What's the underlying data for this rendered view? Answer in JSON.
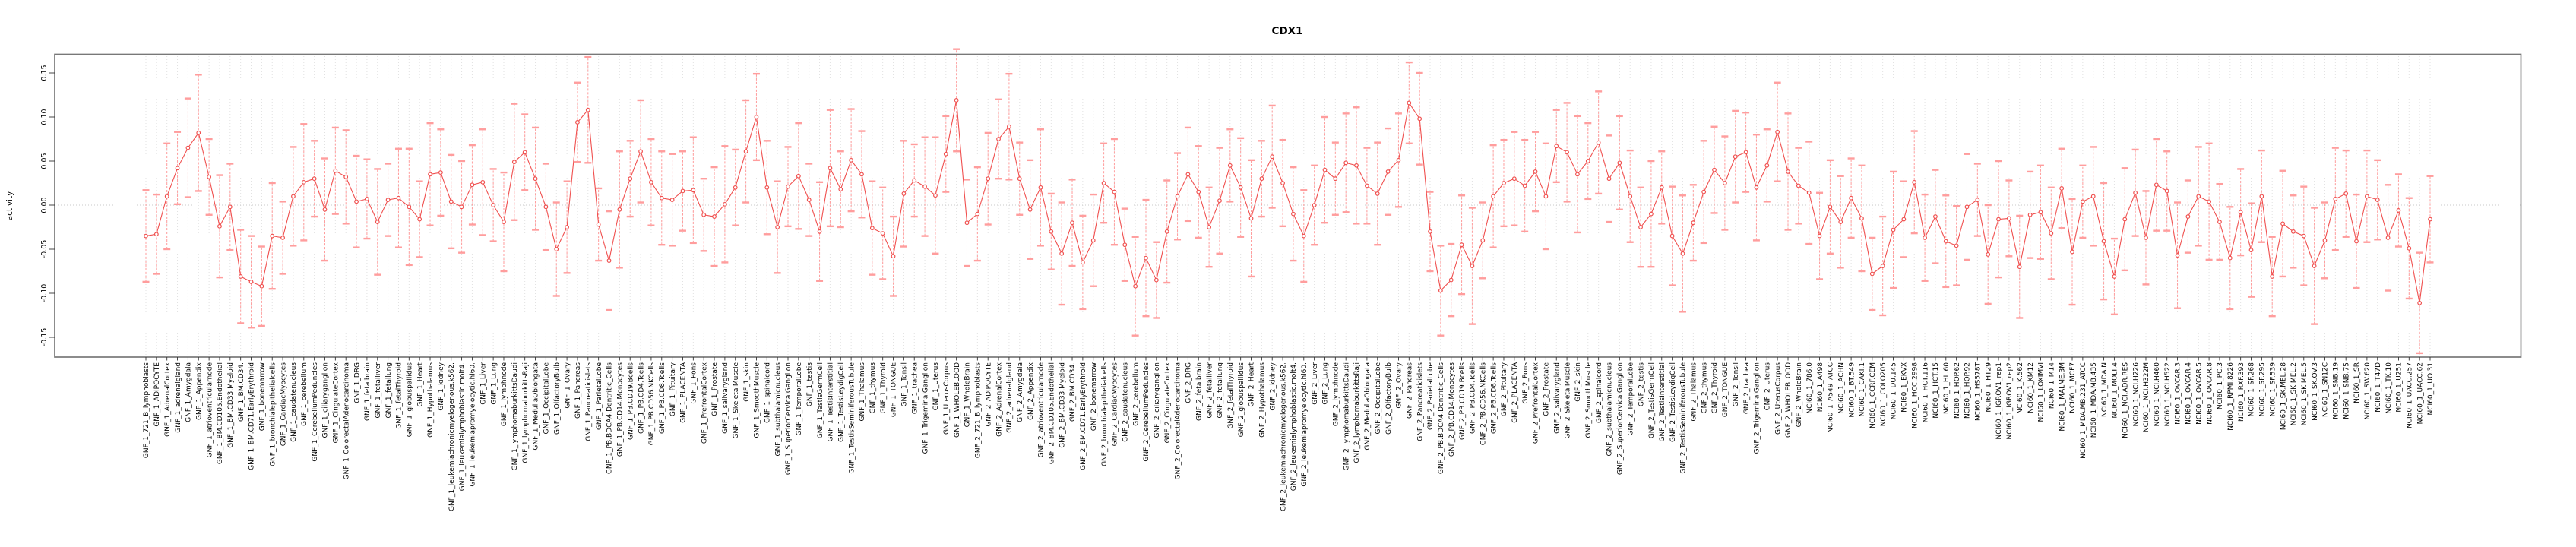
{
  "chart_data": {
    "type": "line",
    "title": "CDX1",
    "ylabel": "activity",
    "xlabel": "",
    "yticks": [
      "0.15",
      "0.10",
      "0.05",
      "0.00",
      "-0.05",
      "-0.10",
      "-0.15"
    ],
    "ylim": [
      -0.172,
      0.171
    ],
    "grid": "vertical dotted per category",
    "zero_line": true,
    "point_style": "open-circle",
    "error_bars": true,
    "legend": "none",
    "colors": {
      "series": "#f0504f",
      "error_bar": "#ff9d9d",
      "grid": "#e1e1e1",
      "zero_line": "#c8c8c8",
      "box": "#787878",
      "tick": "#333333"
    },
    "categories": [
      "GNF_1_721_B_lymphoblasts",
      "GNF_1_ADIPOCYTE",
      "GNF_1_AdrenalCortex",
      "GNF_1_adrenalgland",
      "GNF_1_Amygdala",
      "GNF_1_Appendix",
      "GNF_1_atrioventricularnode",
      "GNF_1_BM.CD105.Endothelial",
      "GNF_1_BM.CD33.Myeloid",
      "GNF_1_BM.CD34.",
      "GNF_1_BM.CD71.EarlyErythroid",
      "GNF_1_bonemarrow",
      "GNF_1_bronchialepithelialcells",
      "GNF_1_CardiacMyocytes",
      "GNF_1_caudatenucleus",
      "GNF_1_cerebellum",
      "GNF_1_CerebellumPeduncles",
      "GNF_1_ciliaryganglion",
      "GNF_1_CingulateCortex",
      "GNF_1_ColorectalAdenocarcinoma",
      "GNF_1_DRG",
      "GNF_1_fetalbrain",
      "GNF_1_fetalliver",
      "GNF_1_fetallung",
      "GNF_1_fetalThyroid",
      "GNF_1_globuspallidus",
      "GNF_1_Heart",
      "GNF_1_Hypothalamus",
      "GNF_1_kidney",
      "GNF_1_leukemiachronicmyelogenous.k562.",
      "GNF_1_leukemialymphoblastic.molt4.",
      "GNF_1_leukemiapromyelocytic.hl60.",
      "GNF_1_Liver",
      "GNF_1_Lung",
      "GNF_1_lymphnode",
      "GNF_1_lymphomaburkittsDaudi",
      "GNF_1_lymphomaburkittsRaji",
      "GNF_1_MedullaOblongata",
      "GNF_1_OccipitalLobe",
      "GNF_1_OlfactoryBulb",
      "GNF_1_Ovary",
      "GNF_1_Pancreas",
      "GNF_1_Pancreaticislets",
      "GNF_1_ParietalLobe",
      "GNF_1_PB.BDCA4.Dentritic_Cells",
      "GNF_1_PB.CD14.Monocytes",
      "GNF_1_PB.CD19.Bcells",
      "GNF_1_PB.CD4.Tcells",
      "GNF_1_PB.CD56.NKCells",
      "GNF_1_PB.CD8.Tcells",
      "GNF_1_Pituitary",
      "GNF_1_PLACENTA",
      "GNF_1_Pons",
      "GNF_1_PrefrontalCortex",
      "GNF_1_Prostate",
      "GNF_1_salivarygland",
      "GNF_1_SkeletalMuscle",
      "GNF_1_skin",
      "GNF_1_SmoothMuscle",
      "GNF_1_spinalcord",
      "GNF_1_subthalamicnucleus",
      "GNF_1_SuperiorCervicalGanglion",
      "GNF_1_TemporalLobe",
      "GNF_1_testis",
      "GNF_1_TestisGermCell",
      "GNF_1_TestisInterstitial",
      "GNF_1_TestisLeydigCell",
      "GNF_1_TestisSeminiferousTubule",
      "GNF_1_Thalamus",
      "GNF_1_thymus",
      "GNF_1_Thyroid",
      "GNF_1_TONGUE",
      "GNF_1_Tonsil",
      "GNF_1_trachea",
      "GNF_1_TrigeminalGanglion",
      "GNF_1_Uterus",
      "GNF_1_UterusCorpus",
      "GNF_1_WHOLEBLOOD",
      "GNF_1_WholeBrain",
      "GNF_2_721_B_lymphoblasts",
      "GNF_2_ADIPOCYTE",
      "GNF_2_AdrenalCortex",
      "GNF_2_adrenalgland",
      "GNF_2_Amygdala",
      "GNF_2_Appendix",
      "GNF_2_atrioventricularnode",
      "GNF_2_BM.CD105.Endothelial",
      "GNF_2_BM.CD33.Myeloid",
      "GNF_2_BM.CD34.",
      "GNF_2_BM.CD71.EarlyErythroid",
      "GNF_2_bonemarrow",
      "GNF_2_bronchialepithelialcells",
      "GNF_2_CardiacMyocytes",
      "GNF_2_caudatenucleus",
      "GNF_2_cerebellum",
      "GNF_2_CerebellumPeduncles",
      "GNF_2_ciliaryganglion",
      "GNF_2_CingulateCortex",
      "GNF_2_ColorectalAdenocarcinoma",
      "GNF_2_DRG",
      "GNF_2_fetalbrain",
      "GNF_2_fetalliver",
      "GNF_2_fetallung",
      "GNF_2_fetalThyroid",
      "GNF_2_globuspallidus",
      "GNF_2_Heart",
      "GNF_2_Hypothalamus",
      "GNF_2_kidney",
      "GNF_2_leukemiachronicmyelogenous.k562.",
      "GNF_2_leukemialymphoblastic.molt4.",
      "GNF_2_leukemiapromyelocytic.hl60.",
      "GNF_2_Liver",
      "GNF_2_Lung",
      "GNF_2_lymphnode",
      "GNF_2_lymphomaburkittsDaudi",
      "GNF_2_lymphomaburkittsRaji",
      "GNF_2_MedullaOblongata",
      "GNF_2_OccipitalLobe",
      "GNF_2_OlfactoryBulb",
      "GNF_2_Ovary",
      "GNF_2_Pancreas",
      "GNF_2_Pancreaticislets",
      "GNF_2_ParietalLobe",
      "GNF_2_PB.BDCA4.Dentritic_Cells",
      "GNF_2_PB.CD14.Monocytes",
      "GNF_2_PB.CD19.Bcells",
      "GNF_2_PB.CD4.Tcells",
      "GNF_2_PB.CD56.NKCells",
      "GNF_2_PB.CD8.Tcells",
      "GNF_2_Pituitary",
      "GNF_2_PLACENTA",
      "GNF_2_Pons",
      "GNF_2_PrefrontalCortex",
      "GNF_2_Prostate",
      "GNF_2_salivarygland",
      "GNF_2_SkeletalMuscle",
      "GNF_2_skin",
      "GNF_2_SmoothMuscle",
      "GNF_2_spinalcord",
      "GNF_2_subthalamicnucleus",
      "GNF_2_SuperiorCervicalGanglion",
      "GNF_2_TemporalLobe",
      "GNF_2_testis",
      "GNF_2_TestisGermCell",
      "GNF_2_TestisInterstitial",
      "GNF_2_TestisLeydigCell",
      "GNF_2_TestisSeminiferousTubule",
      "GNF_2_Thalamus",
      "GNF_2_thymus",
      "GNF_2_Thyroid",
      "GNF_2_TONGUE",
      "GNF_2_Tonsil",
      "GNF_2_trachea",
      "GNF_2_TrigeminalGanglion",
      "GNF_2_Uterus",
      "GNF_2_UterusCorpus",
      "GNF_2_WHOLEBLOOD",
      "GNF_2_WholeBrain",
      "NCI60_1_786.0",
      "NCI60_1_A498",
      "NCI60_1_A549_ATCC",
      "NCI60_1_ACHN",
      "NCI60_1_BT.549",
      "NCI60_1_CAKI.1",
      "NCI60_1_CCRF.CEM",
      "NCI60_1_COLO205",
      "NCI60_1_DU.145",
      "NCI60_1_EKVX",
      "NCI60_1_HCC.2998",
      "NCI60_1_HCT.116",
      "NCI60_1_HCT.15",
      "NCI60_1_HL.60",
      "NCI60_1_HOP.62",
      "NCI60_1_HOP.92",
      "NCI60_1_HS578T",
      "NCI60_1_HT29",
      "NCI60_1_IGROV1_rep1",
      "NCI60_1_IGROV1_rep2",
      "NCI60_1_K.562",
      "NCI60_1_KM12",
      "NCI60_1_LOXIMVI",
      "NCI60_1_M14",
      "NCI60_1_MALME.3M",
      "NCI60_1_MCF7",
      "NCI60_1_MDA.MB.231_ATCC",
      "NCI60_1_MDA.MB.435",
      "NCI60_1_MDA.N",
      "NCI60_1_MOLT.4",
      "NCI60_1_NCI.ADR.RES",
      "NCI60_1_NCI.H226",
      "NCI60_1_NCI.H322M",
      "NCI60_1_NCI.H460",
      "NCI60_1_NCI.H522",
      "NCI60_1_OVCAR.3",
      "NCI60_1_OVCAR.4",
      "NCI60_1_OVCAR.5",
      "NCI60_1_OVCAR.8",
      "NCI60_1_PC.3",
      "NCI60_1_RPMI.8226",
      "NCI60_1_RXF.393",
      "NCI60_1_SF.268",
      "NCI60_1_SF.295",
      "NCI60_1_SF.539",
      "NCI60_1_SK.MEL.28",
      "NCI60_1_SK.MEL.2",
      "NCI60_1_SK.MEL.5",
      "NCI60_1_SK.OV.3",
      "NCI60_1_SN12C",
      "NCI60_1_SNB.19",
      "NCI60_1_SNB.75",
      "NCI60_1_SR",
      "NCI60_1_SW.620",
      "NCI60_1_T47D",
      "NCI60_1_TK.10",
      "NCI60_1_U251",
      "NCI60_1_UACC.257",
      "NCI60_1_UACC.62",
      "NCI60_1_UO.31"
    ],
    "values": [
      -0.035,
      -0.033,
      0.01,
      0.042,
      0.065,
      0.082,
      0.032,
      -0.024,
      -0.002,
      -0.081,
      -0.087,
      -0.092,
      -0.035,
      -0.037,
      0.01,
      0.026,
      0.03,
      -0.005,
      0.039,
      0.032,
      0.004,
      0.007,
      -0.019,
      0.006,
      0.008,
      -0.002,
      -0.016,
      0.035,
      0.037,
      0.004,
      -0.002,
      0.023,
      0.026,
      0.0,
      -0.019,
      0.049,
      0.06,
      0.03,
      -0.002,
      -0.05,
      -0.025,
      0.094,
      0.108,
      -0.022,
      -0.063,
      -0.005,
      0.03,
      0.061,
      0.026,
      0.008,
      0.006,
      0.016,
      0.017,
      -0.011,
      -0.013,
      0.001,
      0.02,
      0.061,
      0.1,
      0.02,
      -0.025,
      0.021,
      0.033,
      0.006,
      -0.03,
      0.042,
      0.018,
      0.051,
      0.035,
      -0.026,
      -0.032,
      -0.058,
      0.013,
      0.028,
      0.021,
      0.011,
      0.058,
      0.119,
      -0.02,
      -0.01,
      0.03,
      0.075,
      0.089,
      0.03,
      -0.005,
      0.02,
      -0.03,
      -0.055,
      -0.02,
      -0.065,
      -0.04,
      0.025,
      0.015,
      -0.045,
      -0.092,
      -0.06,
      -0.085,
      -0.03,
      0.01,
      0.035,
      0.015,
      -0.025,
      0.005,
      0.045,
      0.02,
      -0.015,
      0.03,
      0.055,
      0.025,
      -0.01,
      -0.035,
      0.0,
      0.04,
      0.03,
      0.048,
      0.045,
      0.022,
      0.013,
      0.038,
      0.051,
      0.116,
      0.098,
      -0.03,
      -0.097,
      -0.085,
      -0.045,
      -0.069,
      -0.04,
      0.01,
      0.025,
      0.03,
      0.022,
      0.038,
      0.01,
      0.067,
      0.06,
      0.035,
      0.05,
      0.071,
      0.03,
      0.048,
      0.01,
      -0.025,
      -0.01,
      0.02,
      -0.035,
      -0.055,
      -0.02,
      0.015,
      0.04,
      0.025,
      0.055,
      0.06,
      0.02,
      0.045,
      0.083,
      0.038,
      0.022,
      0.014,
      -0.035,
      -0.002,
      -0.019,
      0.008,
      -0.015,
      -0.078,
      -0.069,
      -0.028,
      -0.016,
      0.026,
      -0.037,
      -0.013,
      -0.041,
      -0.046,
      -0.002,
      0.006,
      -0.056,
      -0.016,
      -0.015,
      -0.07,
      -0.011,
      -0.008,
      -0.032,
      0.019,
      -0.053,
      0.004,
      0.01,
      -0.041,
      -0.081,
      -0.016,
      0.014,
      -0.037,
      0.023,
      0.016,
      -0.057,
      -0.013,
      0.01,
      0.004,
      -0.019,
      -0.06,
      -0.008,
      -0.051,
      0.01,
      -0.081,
      -0.021,
      -0.03,
      -0.035,
      -0.069,
      -0.04,
      0.007,
      0.013,
      -0.041,
      0.01,
      0.006,
      -0.037,
      -0.006,
      -0.049,
      -0.111,
      -0.016
    ],
    "errors": [
      0.052,
      0.045,
      0.06,
      0.041,
      0.056,
      0.066,
      0.043,
      0.058,
      0.049,
      0.053,
      0.052,
      0.045,
      0.06,
      0.041,
      0.056,
      0.066,
      0.043,
      0.058,
      0.049,
      0.053,
      0.052,
      0.045,
      0.06,
      0.041,
      0.056,
      0.066,
      0.043,
      0.058,
      0.049,
      0.053,
      0.052,
      0.045,
      0.06,
      0.041,
      0.056,
      0.066,
      0.043,
      0.058,
      0.049,
      0.053,
      0.052,
      0.045,
      0.06,
      0.041,
      0.056,
      0.066,
      0.043,
      0.058,
      0.049,
      0.053,
      0.052,
      0.045,
      0.06,
      0.041,
      0.056,
      0.066,
      0.043,
      0.058,
      0.049,
      0.053,
      0.052,
      0.045,
      0.06,
      0.041,
      0.056,
      0.066,
      0.043,
      0.058,
      0.049,
      0.053,
      0.052,
      0.045,
      0.06,
      0.041,
      0.056,
      0.066,
      0.043,
      0.058,
      0.049,
      0.053,
      0.052,
      0.045,
      0.06,
      0.041,
      0.056,
      0.066,
      0.043,
      0.058,
      0.049,
      0.053,
      0.052,
      0.045,
      0.06,
      0.041,
      0.056,
      0.066,
      0.043,
      0.058,
      0.049,
      0.053,
      0.052,
      0.045,
      0.06,
      0.041,
      0.056,
      0.066,
      0.043,
      0.058,
      0.049,
      0.053,
      0.052,
      0.045,
      0.06,
      0.041,
      0.056,
      0.066,
      0.043,
      0.058,
      0.049,
      0.053,
      0.046,
      0.052,
      0.045,
      0.051,
      0.041,
      0.056,
      0.066,
      0.043,
      0.058,
      0.049,
      0.053,
      0.052,
      0.045,
      0.06,
      0.041,
      0.056,
      0.066,
      0.043,
      0.058,
      0.049,
      0.053,
      0.052,
      0.045,
      0.06,
      0.041,
      0.056,
      0.066,
      0.043,
      0.058,
      0.049,
      0.053,
      0.052,
      0.045,
      0.06,
      0.041,
      0.056,
      0.066,
      0.043,
      0.058,
      0.049,
      0.053,
      0.052,
      0.045,
      0.06,
      0.041,
      0.056,
      0.066,
      0.043,
      0.058,
      0.049,
      0.053,
      0.052,
      0.045,
      0.06,
      0.041,
      0.056,
      0.066,
      0.043,
      0.058,
      0.049,
      0.053,
      0.052,
      0.045,
      0.06,
      0.041,
      0.056,
      0.066,
      0.043,
      0.058,
      0.049,
      0.053,
      0.052,
      0.045,
      0.06,
      0.041,
      0.056,
      0.066,
      0.043,
      0.058,
      0.049,
      0.053,
      0.052,
      0.045,
      0.06,
      0.041,
      0.056,
      0.066,
      0.043,
      0.058,
      0.049,
      0.053,
      0.052,
      0.045,
      0.06,
      0.041,
      0.057,
      0.057,
      0.049
    ]
  }
}
